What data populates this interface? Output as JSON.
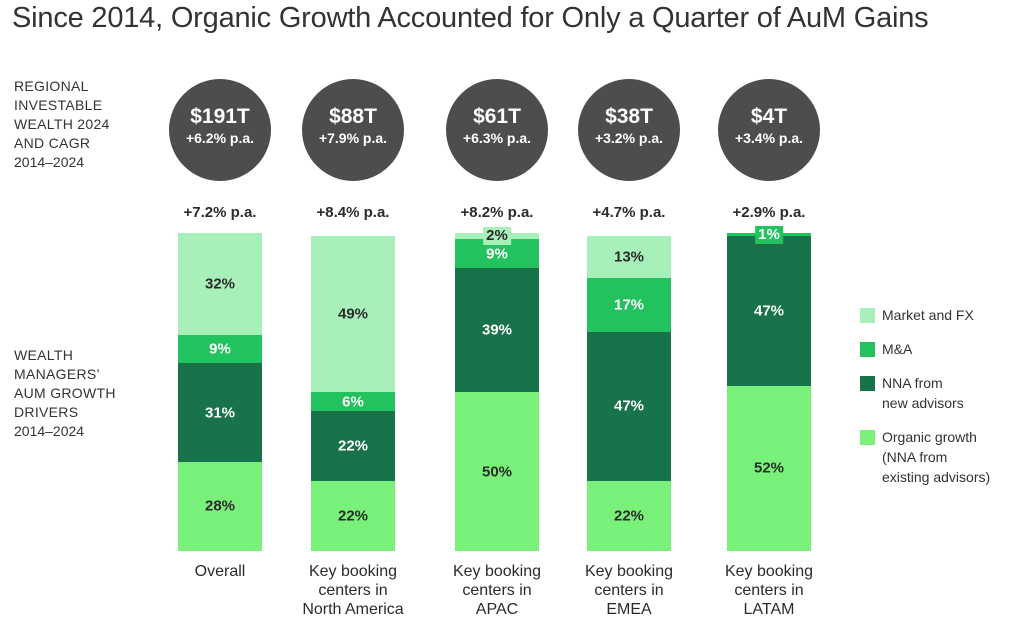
{
  "title": "Since 2014, Organic Growth Accounted for Only a Quarter of AuM Gains",
  "labels": {
    "wealth": [
      "REGIONAL",
      "INVESTABLE",
      "WEALTH 2024",
      "AND CAGR"
    ],
    "wealth_years": "2014–2024",
    "drivers": [
      "WEALTH",
      "MANAGERS’",
      "AUM GROWTH",
      "DRIVERS"
    ],
    "drivers_years": "2014–2024"
  },
  "colors": {
    "market_fx": "#a7f0b9",
    "ma": "#22c35e",
    "nna_new": "#18734a",
    "organic": "#79f07a"
  },
  "chart_data": {
    "type": "bar",
    "stacked": true,
    "normalized_percent": true,
    "title": "Since 2014, Organic Growth Accounted for Only a Quarter of AuM Gains",
    "categories": [
      [
        "Overall"
      ],
      [
        "Key booking",
        "centers in",
        "North America"
      ],
      [
        "Key booking",
        "centers in",
        "APAC"
      ],
      [
        "Key booking",
        "centers in",
        "EMEA"
      ],
      [
        "Key booking",
        "centers in",
        "LATAM"
      ]
    ],
    "wealth_2024": [
      {
        "value": "$191T",
        "cagr": "+6.2% p.a."
      },
      {
        "value": "$88T",
        "cagr": "+7.9% p.a."
      },
      {
        "value": "$61T",
        "cagr": "+6.3% p.a."
      },
      {
        "value": "$38T",
        "cagr": "+3.2% p.a."
      },
      {
        "value": "$4T",
        "cagr": "+3.4% p.a."
      }
    ],
    "aum_growth": [
      "+7.2% p.a.",
      "+8.4% p.a.",
      "+8.2% p.a.",
      "+4.7% p.a.",
      "+2.9% p.a."
    ],
    "series": [
      {
        "key": "organic",
        "name": [
          "Organic growth",
          "(NNA from",
          "existing advisors)"
        ],
        "values": [
          28,
          22,
          50,
          22,
          52
        ]
      },
      {
        "key": "nna_new",
        "name": [
          "NNA from",
          "new advisors"
        ],
        "values": [
          31,
          22,
          39,
          47,
          47
        ]
      },
      {
        "key": "ma",
        "name": [
          "M&A"
        ],
        "values": [
          9,
          6,
          9,
          17,
          1
        ]
      },
      {
        "key": "market_fx",
        "name": [
          "Market and FX"
        ],
        "values": [
          32,
          49,
          2,
          13,
          0
        ]
      }
    ],
    "legend_order": [
      "market_fx",
      "ma",
      "nna_new",
      "organic"
    ],
    "ylim": [
      0,
      100
    ]
  }
}
